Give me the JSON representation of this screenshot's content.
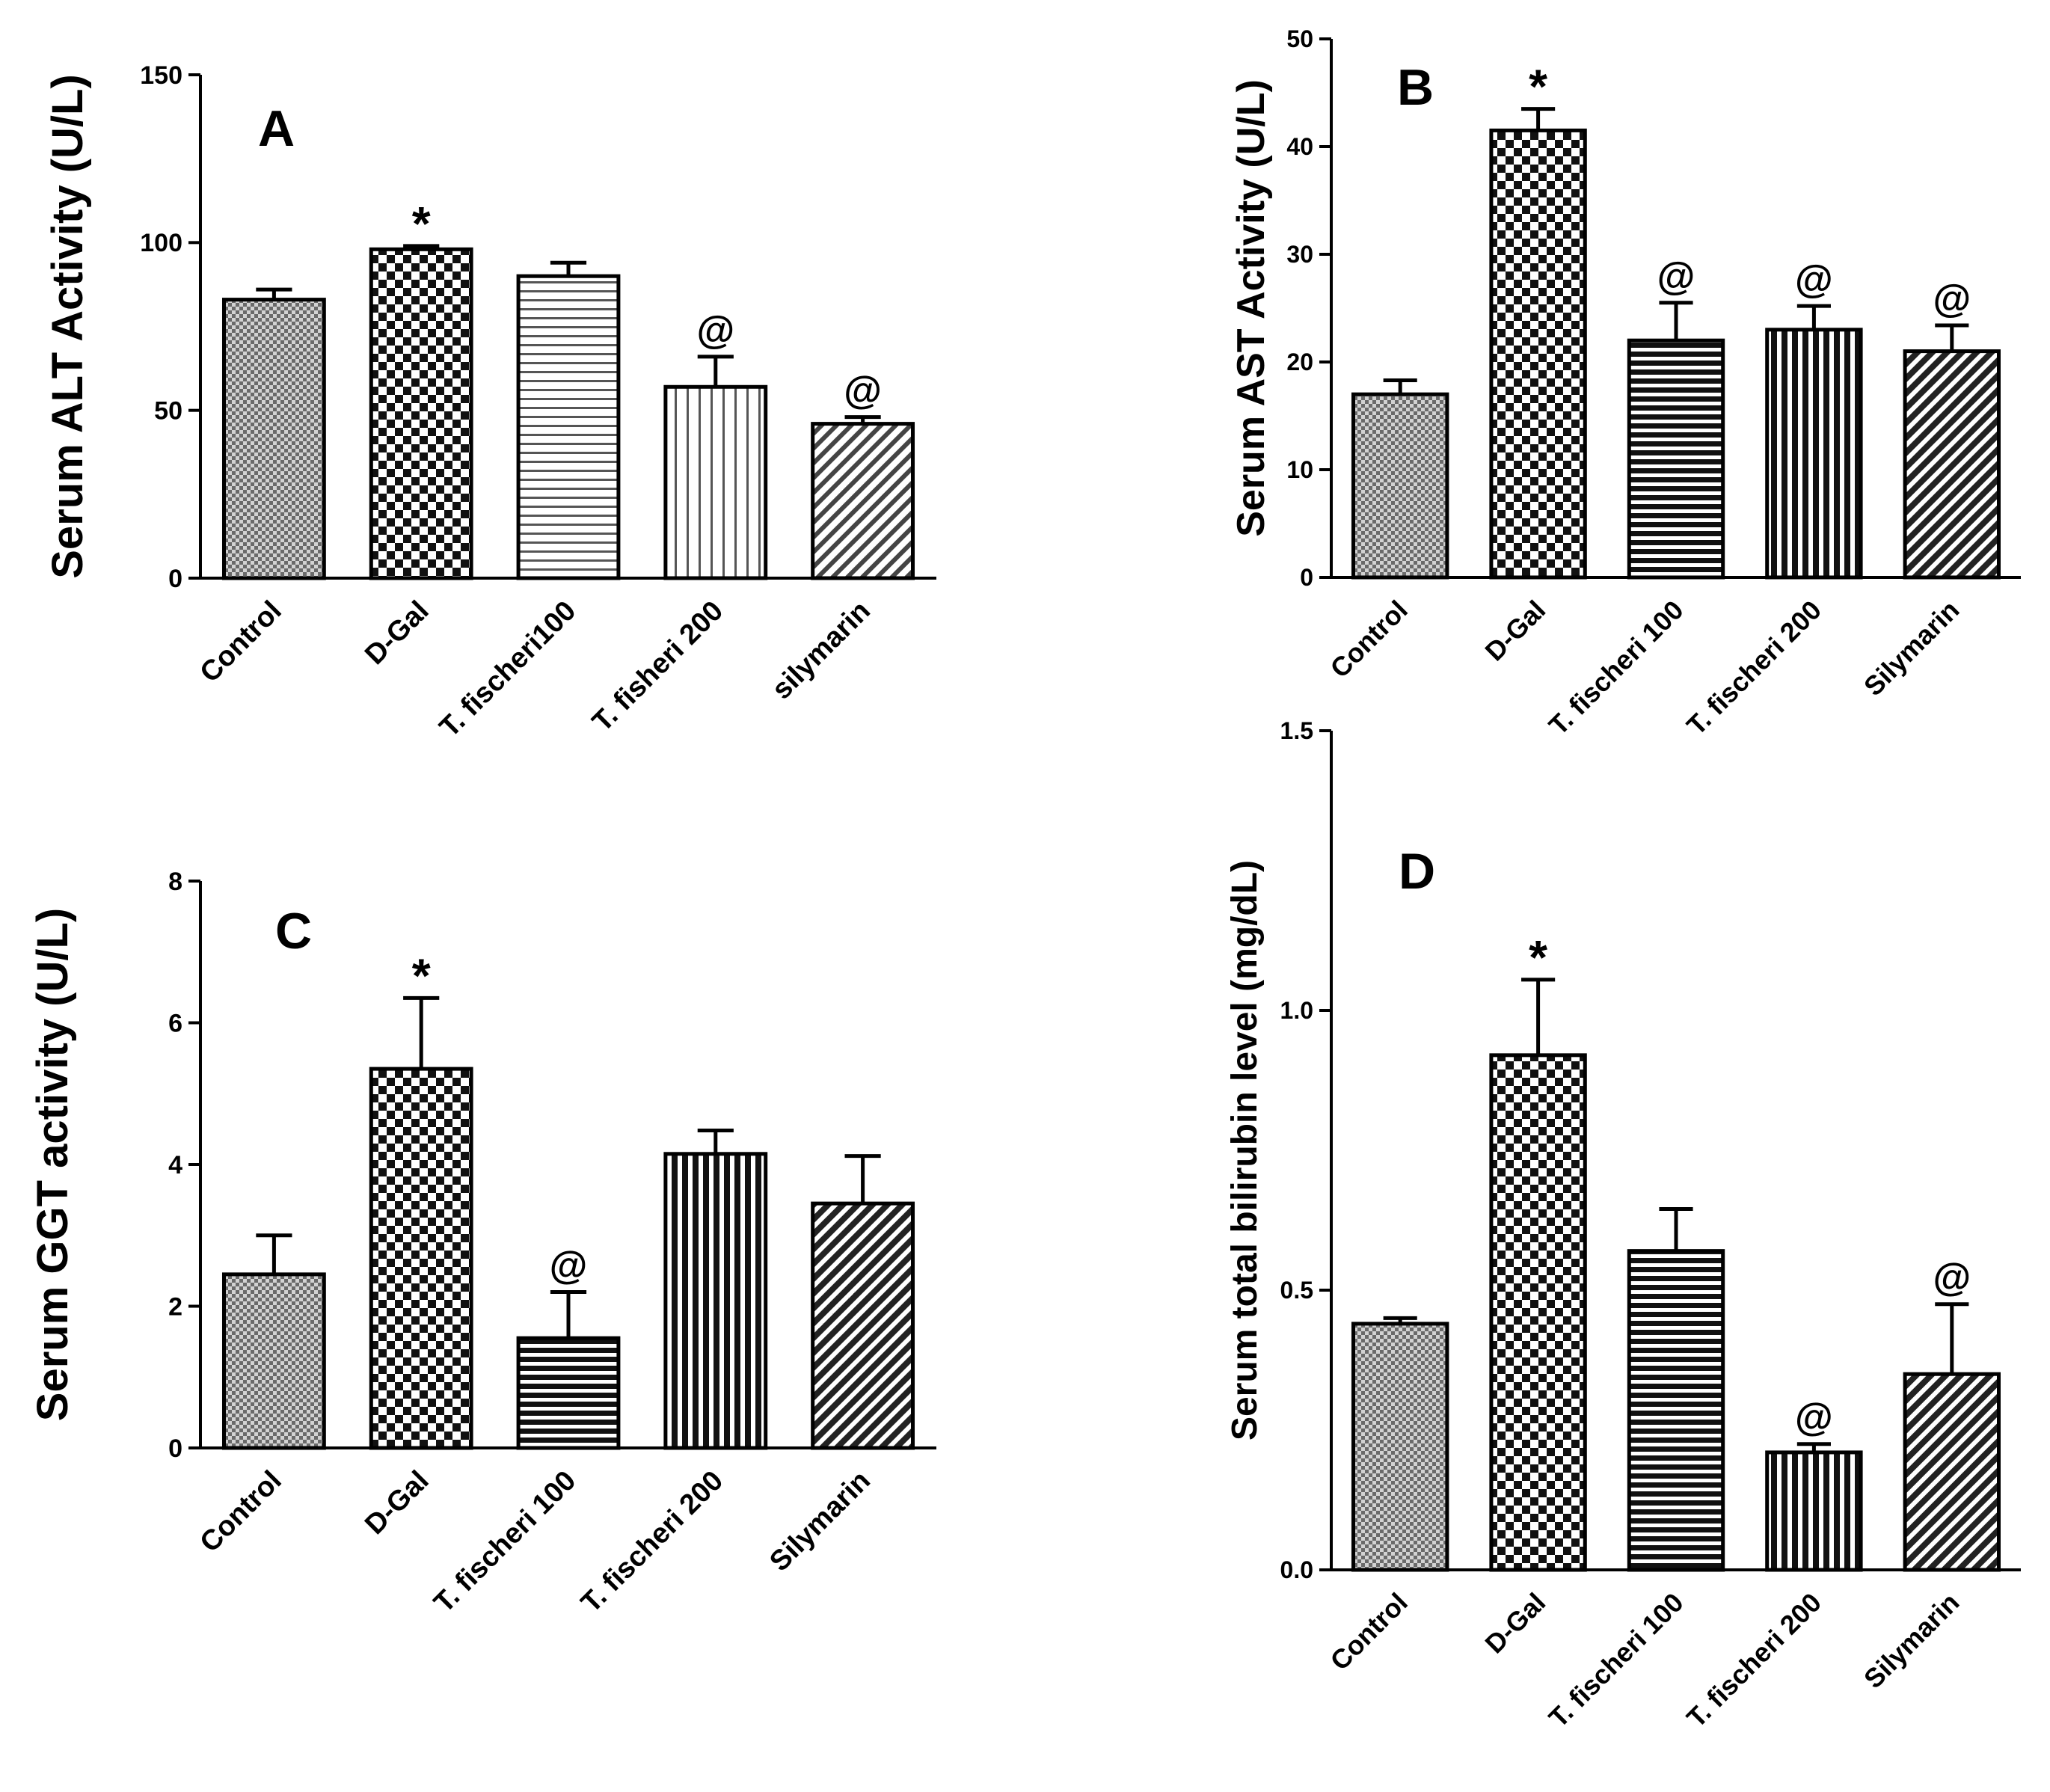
{
  "chart_data": [
    {
      "type": "bar",
      "panel_letter": "A",
      "ylabel": "Serum ALT Activity (U/L)",
      "categories": [
        "Control",
        "D-Gal",
        "T. fischeri100",
        "T. fisheri 200",
        "silymarin"
      ],
      "values": [
        83,
        98,
        90,
        57,
        46
      ],
      "errors": [
        3,
        1,
        4,
        9,
        2
      ],
      "significance": [
        "",
        "*",
        "",
        "@",
        "@"
      ],
      "patterns": [
        "p-fine",
        "p-check",
        "p-hlines",
        "p-vlines",
        "p-diag"
      ],
      "ylim": [
        0,
        150
      ],
      "yticks": [
        0,
        50,
        100,
        150
      ],
      "tick_labels": [
        "0",
        "50",
        "100",
        "150"
      ]
    },
    {
      "type": "bar",
      "panel_letter": "B",
      "ylabel": "Serum AST Activity (U/L)",
      "categories": [
        "Control",
        "D-Gal",
        "T. fischeri 100",
        "T. fischeri 200",
        "Silymarin"
      ],
      "values": [
        17,
        41.5,
        22,
        23,
        21
      ],
      "errors": [
        1.3,
        2,
        3.5,
        2.2,
        2.4
      ],
      "significance": [
        "",
        "*",
        "@",
        "@",
        "@"
      ],
      "patterns": [
        "p-fine",
        "p-check",
        "p-hthick",
        "p-vthick",
        "p-diag2"
      ],
      "ylim": [
        0,
        50
      ],
      "yticks": [
        0,
        10,
        20,
        30,
        40,
        50
      ],
      "tick_labels": [
        "0",
        "10",
        "20",
        "30",
        "40",
        "50"
      ]
    },
    {
      "type": "bar",
      "panel_letter": "C",
      "ylabel": "Serum GGT activity (U/L)",
      "categories": [
        "Control",
        "D-Gal",
        "T. fischeri 100",
        "T. fischeri 200",
        "Silymarin"
      ],
      "values": [
        2.45,
        5.35,
        1.55,
        4.15,
        3.45
      ],
      "errors": [
        0.55,
        1.0,
        0.65,
        0.33,
        0.67
      ],
      "significance": [
        "",
        "*",
        "@",
        "",
        ""
      ],
      "patterns": [
        "p-fine",
        "p-check",
        "p-hthick",
        "p-vthick",
        "p-diag2"
      ],
      "ylim": [
        0,
        8
      ],
      "yticks": [
        0,
        2,
        4,
        6,
        8
      ],
      "tick_labels": [
        "0",
        "2",
        "4",
        "6",
        "8"
      ]
    },
    {
      "type": "bar",
      "panel_letter": "D",
      "ylabel": "Serum total bilirubin level (mg/dL)",
      "categories": [
        "Control",
        "D-Gal",
        "T. fischeri 100",
        "T. fischeri 200",
        "Silymarin"
      ],
      "values": [
        0.44,
        0.92,
        0.57,
        0.21,
        0.35
      ],
      "errors": [
        0.01,
        0.135,
        0.075,
        0.015,
        0.125
      ],
      "significance": [
        "",
        "*",
        "",
        "@",
        "@"
      ],
      "patterns": [
        "p-fine",
        "p-check",
        "p-hthick",
        "p-vthick",
        "p-diag2"
      ],
      "ylim": [
        0,
        1.5
      ],
      "yticks": [
        0,
        0.5,
        1.0,
        1.5
      ],
      "tick_labels": [
        "0.0",
        "0.5",
        "1.0",
        "1.5"
      ]
    }
  ]
}
